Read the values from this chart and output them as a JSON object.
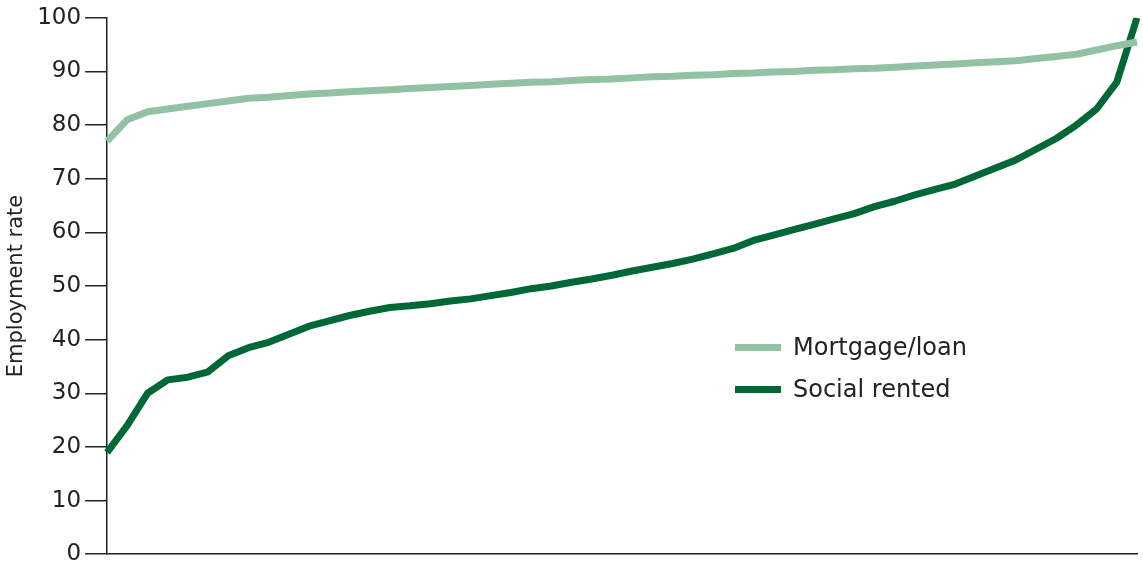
{
  "chart_data": {
    "type": "line",
    "ylabel": "Employment rate",
    "categories": [
      null,
      null,
      null,
      null,
      null,
      null,
      null,
      null,
      null,
      null,
      null,
      null,
      null,
      null,
      null,
      null,
      null,
      null,
      null,
      null,
      null,
      null,
      null,
      null,
      null,
      null,
      null,
      null,
      null,
      null,
      null,
      null,
      null,
      null,
      null,
      null,
      null,
      null,
      null,
      null,
      null,
      null,
      null,
      null,
      null,
      null,
      null,
      null,
      null,
      null,
      null,
      null
    ],
    "series": [
      {
        "name": "Mortgage/loan",
        "color": "#93c1a4",
        "values": [
          77,
          81,
          82.5,
          83,
          83.5,
          84,
          84.5,
          85,
          85.2,
          85.5,
          85.8,
          86,
          86.2,
          86.4,
          86.6,
          86.8,
          87,
          87.2,
          87.4,
          87.6,
          87.8,
          88,
          88.1,
          88.3,
          88.5,
          88.6,
          88.8,
          89,
          89.1,
          89.3,
          89.4,
          89.6,
          89.7,
          89.9,
          90,
          90.2,
          90.3,
          90.5,
          90.6,
          90.8,
          91,
          91.2,
          91.4,
          91.6,
          91.8,
          92,
          92.4,
          92.8,
          93.2,
          94,
          94.8,
          95.5
        ]
      },
      {
        "name": "Social rented",
        "color": "#006837",
        "values": [
          19,
          24,
          30,
          32.5,
          33,
          34,
          37,
          38.5,
          39.5,
          41,
          42.5,
          43.5,
          44.5,
          45.3,
          46,
          46.3,
          46.7,
          47.2,
          47.6,
          48.2,
          48.8,
          49.5,
          50,
          50.7,
          51.3,
          52,
          52.8,
          53.5,
          54.2,
          55,
          56,
          57,
          58.5,
          59.5,
          60.5,
          61.5,
          62.5,
          63.5,
          64.8,
          65.8,
          67,
          68,
          69,
          70.5,
          72,
          73.5,
          75.5,
          77.5,
          80,
          83,
          88,
          100
        ]
      }
    ],
    "ylim": [
      0,
      100
    ],
    "yticks": [
      0,
      10,
      20,
      30,
      40,
      50,
      60,
      70,
      80,
      90,
      100
    ],
    "grid": false,
    "legend": "right",
    "marker": "none",
    "line_style": "solid",
    "tick_labels": "y"
  }
}
